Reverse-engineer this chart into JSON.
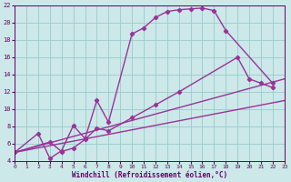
{
  "background_color": "#cce8e8",
  "grid_color": "#99cccc",
  "line_color": "#993399",
  "marker": "D",
  "marker_size": 2.2,
  "line_width": 1.0,
  "xlabel": "Windchill (Refroidissement éolien,°C)",
  "xlim": [
    0,
    23
  ],
  "ylim": [
    4,
    22
  ],
  "yticks": [
    4,
    6,
    8,
    10,
    12,
    14,
    16,
    18,
    20,
    22
  ],
  "xticks": [
    0,
    1,
    2,
    3,
    4,
    5,
    6,
    7,
    8,
    9,
    10,
    11,
    12,
    13,
    14,
    15,
    16,
    17,
    18,
    19,
    20,
    21,
    22,
    23
  ],
  "line1_x": [
    0,
    2,
    3,
    4,
    5,
    6,
    7,
    8,
    10,
    11,
    12,
    13,
    14,
    15,
    16,
    17,
    18,
    22
  ],
  "line1_y": [
    5.0,
    7.2,
    4.3,
    5.2,
    8.1,
    6.6,
    11.0,
    8.5,
    18.7,
    19.4,
    20.6,
    21.3,
    21.5,
    21.6,
    21.7,
    21.4,
    19.1,
    13.0
  ],
  "line2_x": [
    0,
    3,
    4,
    5,
    6,
    7,
    8,
    10,
    12,
    14,
    19,
    20,
    21,
    22
  ],
  "line2_y": [
    5.0,
    6.2,
    5.1,
    5.5,
    6.5,
    7.8,
    7.5,
    9.0,
    10.5,
    12.0,
    16.0,
    13.5,
    13.0,
    12.5
  ],
  "line3_x": [
    0,
    23
  ],
  "line3_y": [
    5.0,
    11.0
  ],
  "line4_x": [
    0,
    23
  ],
  "line4_y": [
    5.0,
    13.5
  ],
  "font_color": "#660066",
  "font_family": "monospace"
}
